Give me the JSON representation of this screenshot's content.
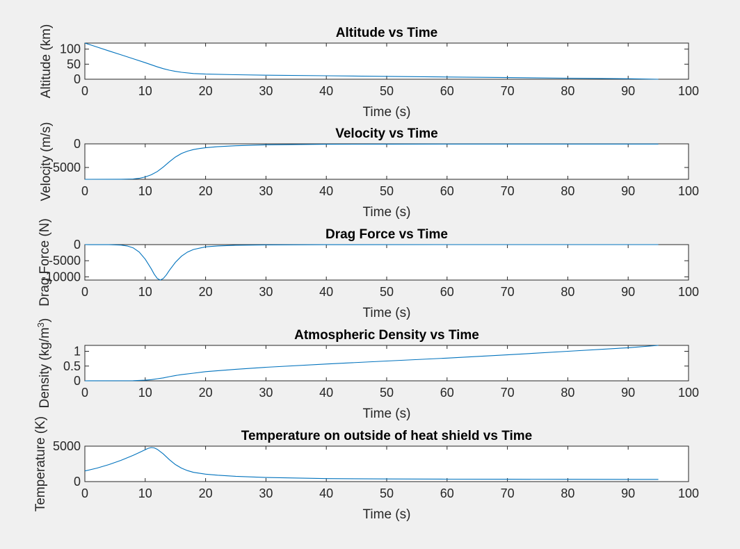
{
  "figure": {
    "background": "#f0f0f0",
    "line_color": "#0072bd"
  },
  "chart_data": [
    {
      "type": "line",
      "title": "Altitude vs Time",
      "xlabel": "Time (s)",
      "ylabel": "Altitude (km)",
      "xlim": [
        0,
        100
      ],
      "ylim": [
        0,
        120
      ],
      "xticks": [
        0,
        10,
        20,
        30,
        40,
        50,
        60,
        70,
        80,
        90,
        100
      ],
      "yticks": [
        0,
        50,
        100
      ],
      "ytick_labels": [
        "0",
        "50",
        "100"
      ],
      "series": [
        {
          "x": [
            0,
            2,
            4,
            6,
            8,
            10,
            11,
            12,
            13,
            14,
            15,
            16,
            18,
            20,
            25,
            30,
            40,
            50,
            60,
            70,
            80,
            90,
            95
          ],
          "y": [
            120,
            107,
            94,
            81,
            68,
            55,
            48,
            41,
            35,
            30,
            26,
            23,
            19,
            17,
            15,
            13.5,
            11.5,
            9.5,
            7.5,
            5.5,
            3.5,
            1.5,
            0
          ]
        }
      ]
    },
    {
      "type": "line",
      "title": "Velocity vs Time",
      "xlabel": "Time (s)",
      "ylabel": "Velocity (m/s)",
      "xlim": [
        0,
        100
      ],
      "ylim": [
        -7500,
        0
      ],
      "xticks": [
        0,
        10,
        20,
        30,
        40,
        50,
        60,
        70,
        80,
        90,
        100
      ],
      "yticks": [
        -5000,
        0
      ],
      "ytick_labels": [
        "-5000",
        "0"
      ],
      "series": [
        {
          "x": [
            0,
            6,
            8,
            9,
            10,
            11,
            12,
            13,
            14,
            15,
            16,
            17,
            18,
            19,
            20,
            22,
            25,
            30,
            40,
            50,
            60,
            70,
            80,
            90,
            95
          ],
          "y": [
            -7500,
            -7480,
            -7420,
            -7300,
            -7000,
            -6550,
            -5850,
            -4900,
            -3800,
            -2800,
            -2050,
            -1550,
            -1200,
            -980,
            -820,
            -600,
            -400,
            -200,
            -90,
            -60,
            -50,
            -45,
            -42,
            -40,
            -40
          ]
        }
      ]
    },
    {
      "type": "line",
      "title": "Drag Force vs Time",
      "xlabel": "Time (s)",
      "ylabel": "Drag Force (N)",
      "xlim": [
        0,
        100
      ],
      "ylim": [
        -11000,
        0
      ],
      "xticks": [
        0,
        10,
        20,
        30,
        40,
        50,
        60,
        70,
        80,
        90,
        100
      ],
      "yticks": [
        -10000,
        -5000,
        0
      ],
      "ytick_labels": [
        "-10000",
        "-5000",
        "0"
      ],
      "series": [
        {
          "x": [
            0,
            4,
            6,
            7,
            8,
            9,
            10,
            11,
            11.5,
            12,
            12.5,
            13,
            13.5,
            14,
            15,
            16,
            17,
            18,
            20,
            22,
            25,
            30,
            40,
            60,
            95
          ],
          "y": [
            0,
            -20,
            -150,
            -400,
            -1000,
            -2300,
            -4500,
            -7500,
            -9200,
            -10500,
            -11000,
            -10500,
            -9400,
            -8000,
            -5500,
            -3600,
            -2300,
            -1500,
            -700,
            -400,
            -200,
            -80,
            -20,
            -10,
            -5
          ]
        }
      ]
    },
    {
      "type": "line",
      "title": "Atmospheric Density vs Time",
      "xlabel": "Time (s)",
      "ylabel": "Density (kg/m",
      "ylabel_superscript": "3",
      "ylabel_suffix": ")",
      "xlim": [
        0,
        100
      ],
      "ylim": [
        0,
        1.2
      ],
      "xticks": [
        0,
        10,
        20,
        30,
        40,
        50,
        60,
        70,
        80,
        90,
        100
      ],
      "yticks": [
        0,
        0.5,
        1
      ],
      "ytick_labels": [
        "0",
        "0.5",
        "1"
      ],
      "series": [
        {
          "x": [
            0,
            8,
            10,
            11,
            12,
            13,
            14,
            15,
            16,
            18,
            20,
            25,
            30,
            40,
            50,
            60,
            70,
            80,
            90,
            95
          ],
          "y": [
            0,
            0.005,
            0.02,
            0.04,
            0.07,
            0.1,
            0.14,
            0.18,
            0.21,
            0.26,
            0.31,
            0.39,
            0.46,
            0.57,
            0.67,
            0.77,
            0.88,
            1.0,
            1.12,
            1.2
          ]
        }
      ]
    },
    {
      "type": "line",
      "title": "Temperature on outside of heat shield vs Time",
      "xlabel": "Time (s)",
      "ylabel": "Temperature (K)",
      "xlim": [
        0,
        100
      ],
      "ylim": [
        0,
        5000
      ],
      "xticks": [
        0,
        10,
        20,
        30,
        40,
        50,
        60,
        70,
        80,
        90,
        100
      ],
      "yticks": [
        0,
        5000
      ],
      "ytick_labels": [
        "0",
        "5000"
      ],
      "series": [
        {
          "x": [
            0,
            2,
            4,
            6,
            8,
            9,
            10,
            10.5,
            11,
            11.5,
            12,
            13,
            14,
            15,
            16,
            17,
            18,
            20,
            22,
            25,
            30,
            40,
            50,
            60,
            70,
            80,
            90,
            95
          ],
          "y": [
            1500,
            1900,
            2400,
            3000,
            3700,
            4100,
            4500,
            4700,
            4800,
            4750,
            4550,
            3900,
            3100,
            2400,
            1900,
            1550,
            1300,
            1050,
            900,
            750,
            580,
            420,
            370,
            340,
            330,
            320,
            315,
            310
          ]
        }
      ]
    }
  ]
}
